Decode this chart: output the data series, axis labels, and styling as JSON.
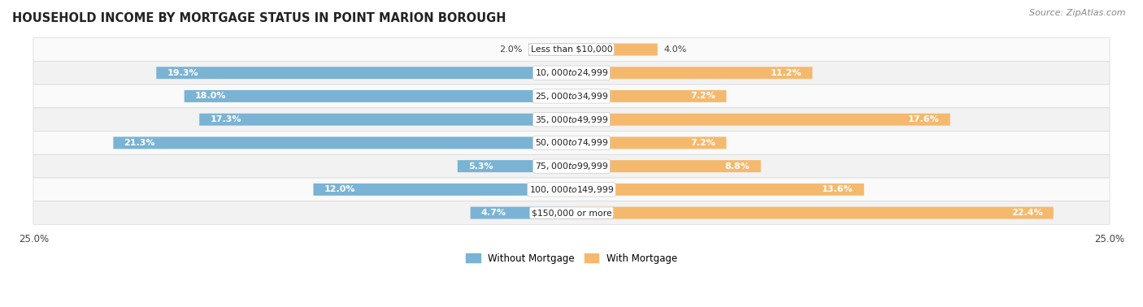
{
  "title": "HOUSEHOLD INCOME BY MORTGAGE STATUS IN POINT MARION BOROUGH",
  "source": "Source: ZipAtlas.com",
  "categories": [
    "Less than $10,000",
    "$10,000 to $24,999",
    "$25,000 to $34,999",
    "$35,000 to $49,999",
    "$50,000 to $74,999",
    "$75,000 to $99,999",
    "$100,000 to $149,999",
    "$150,000 or more"
  ],
  "without_mortgage": [
    2.0,
    19.3,
    18.0,
    17.3,
    21.3,
    5.3,
    12.0,
    4.7
  ],
  "with_mortgage": [
    4.0,
    11.2,
    7.2,
    17.6,
    7.2,
    8.8,
    13.6,
    22.4
  ],
  "color_without": "#7ab3d4",
  "color_with": "#f5b96e",
  "color_without_light": "#aacfe6",
  "color_with_light": "#f9d4a0",
  "row_bg_odd": "#f2f2f2",
  "row_bg_even": "#fafafa",
  "row_border": "#d8d8d8",
  "xlim": 25.0,
  "bar_height": 0.52,
  "title_fontsize": 10.5,
  "label_fontsize": 8,
  "category_fontsize": 7.8,
  "legend_fontsize": 8.5,
  "source_fontsize": 8,
  "inside_label_threshold": 4.5
}
